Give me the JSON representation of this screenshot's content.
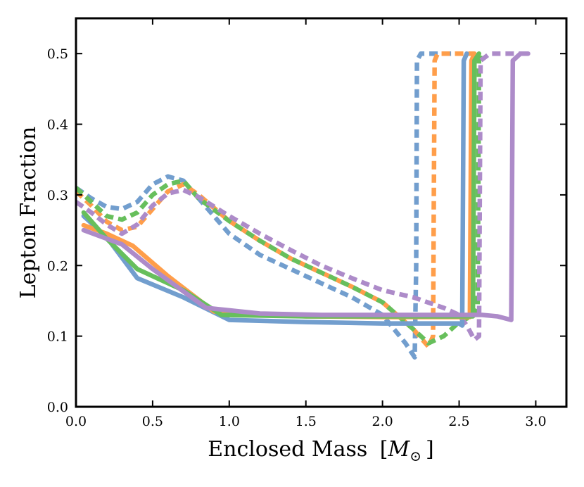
{
  "chart_data": {
    "type": "line",
    "title": "",
    "xlabel_text": "Enclosed Mass",
    "xlabel_unit_symbol": "M",
    "xlabel_unit_subscript": "⊙",
    "xlabel_bracket_open": "[",
    "xlabel_bracket_close": "]",
    "ylabel": "Lepton Fraction",
    "xlim": [
      0.0,
      3.2
    ],
    "ylim": [
      0.0,
      0.55
    ],
    "xticks": [
      0.0,
      0.5,
      1.0,
      1.5,
      2.0,
      2.5,
      3.0
    ],
    "xtick_labels": [
      "0.0",
      "0.5",
      "1.0",
      "1.5",
      "2.0",
      "2.5",
      "3.0"
    ],
    "yticks": [
      0.0,
      0.1,
      0.2,
      0.3,
      0.4,
      0.5
    ],
    "ytick_labels": [
      "0.0",
      "0.1",
      "0.2",
      "0.3",
      "0.4",
      "0.5"
    ],
    "grid": false,
    "legend": "none",
    "series": [
      {
        "name": "blue-dashed",
        "color": "#729ece",
        "style": "dashed",
        "x": [
          0.0,
          0.1,
          0.2,
          0.3,
          0.4,
          0.5,
          0.6,
          0.7,
          0.8,
          1.0,
          1.2,
          1.4,
          1.6,
          1.8,
          2.0,
          2.15,
          2.21,
          2.22,
          2.225,
          2.25,
          2.3,
          2.4,
          2.5
        ],
        "y": [
          0.31,
          0.295,
          0.283,
          0.28,
          0.29,
          0.315,
          0.326,
          0.32,
          0.295,
          0.245,
          0.215,
          0.195,
          0.175,
          0.155,
          0.13,
          0.09,
          0.07,
          0.2,
          0.49,
          0.5,
          0.5,
          0.5,
          0.5
        ]
      },
      {
        "name": "orange-dashed",
        "color": "#ff9e4a",
        "style": "dashed",
        "x": [
          0.0,
          0.1,
          0.2,
          0.3,
          0.4,
          0.5,
          0.6,
          0.7,
          0.8,
          1.0,
          1.2,
          1.4,
          1.6,
          1.8,
          2.0,
          2.2,
          2.3,
          2.33,
          2.335,
          2.34,
          2.36,
          2.4,
          2.5,
          2.6
        ],
        "y": [
          0.305,
          0.285,
          0.262,
          0.25,
          0.255,
          0.28,
          0.305,
          0.315,
          0.3,
          0.263,
          0.235,
          0.21,
          0.19,
          0.17,
          0.148,
          0.11,
          0.085,
          0.1,
          0.3,
          0.49,
          0.5,
          0.5,
          0.5,
          0.5
        ]
      },
      {
        "name": "green-dashed",
        "color": "#67bf5c",
        "style": "dashed",
        "x": [
          0.0,
          0.1,
          0.2,
          0.3,
          0.4,
          0.5,
          0.6,
          0.7,
          0.8,
          1.0,
          1.2,
          1.4,
          1.6,
          1.8,
          2.0,
          2.2,
          2.3,
          2.4,
          2.5,
          2.6,
          2.62,
          2.625,
          2.63,
          2.65
        ],
        "y": [
          0.31,
          0.29,
          0.27,
          0.265,
          0.275,
          0.3,
          0.315,
          0.32,
          0.295,
          0.263,
          0.235,
          0.21,
          0.19,
          0.17,
          0.148,
          0.11,
          0.09,
          0.1,
          0.12,
          0.13,
          0.14,
          0.3,
          0.49,
          0.5
        ]
      },
      {
        "name": "purple-dashed",
        "color": "#ad8bc9",
        "style": "dashed",
        "x": [
          0.0,
          0.1,
          0.2,
          0.3,
          0.4,
          0.5,
          0.6,
          0.7,
          0.8,
          1.0,
          1.2,
          1.4,
          1.6,
          1.8,
          2.0,
          2.2,
          2.4,
          2.5,
          2.55,
          2.6,
          2.63,
          2.635,
          2.64,
          2.7,
          2.8,
          2.95
        ],
        "y": [
          0.29,
          0.275,
          0.258,
          0.245,
          0.258,
          0.285,
          0.302,
          0.307,
          0.297,
          0.27,
          0.245,
          0.222,
          0.2,
          0.182,
          0.165,
          0.155,
          0.14,
          0.13,
          0.115,
          0.095,
          0.1,
          0.3,
          0.49,
          0.5,
          0.5,
          0.5
        ]
      },
      {
        "name": "blue-solid",
        "color": "#729ece",
        "style": "solid",
        "x": [
          0.05,
          0.2,
          0.4,
          0.7,
          1.0,
          1.5,
          2.0,
          2.3,
          2.5,
          2.52,
          2.525,
          2.53,
          2.55
        ],
        "y": [
          0.27,
          0.24,
          0.182,
          0.155,
          0.123,
          0.12,
          0.118,
          0.118,
          0.118,
          0.115,
          0.3,
          0.49,
          0.5
        ]
      },
      {
        "name": "orange-solid",
        "color": "#ff9e4a",
        "style": "solid",
        "x": [
          0.05,
          0.2,
          0.37,
          0.6,
          0.9,
          1.5,
          2.0,
          2.5,
          2.57,
          2.575,
          2.58,
          2.6
        ],
        "y": [
          0.257,
          0.245,
          0.228,
          0.185,
          0.135,
          0.128,
          0.127,
          0.127,
          0.127,
          0.3,
          0.49,
          0.5
        ]
      },
      {
        "name": "green-solid",
        "color": "#67bf5c",
        "style": "solid",
        "x": [
          0.05,
          0.2,
          0.4,
          0.7,
          0.95,
          1.5,
          2.0,
          2.5,
          2.59,
          2.595,
          2.6,
          2.63
        ],
        "y": [
          0.275,
          0.238,
          0.195,
          0.165,
          0.13,
          0.128,
          0.128,
          0.128,
          0.128,
          0.3,
          0.49,
          0.5
        ]
      },
      {
        "name": "purple-solid",
        "color": "#ad8bc9",
        "style": "solid",
        "x": [
          0.05,
          0.3,
          0.5,
          0.85,
          1.2,
          1.6,
          2.0,
          2.4,
          2.65,
          2.75,
          2.84,
          2.845,
          2.85,
          2.9,
          2.95
        ],
        "y": [
          0.25,
          0.23,
          0.195,
          0.14,
          0.132,
          0.13,
          0.13,
          0.13,
          0.13,
          0.128,
          0.123,
          0.3,
          0.49,
          0.5,
          0.5
        ]
      }
    ]
  }
}
